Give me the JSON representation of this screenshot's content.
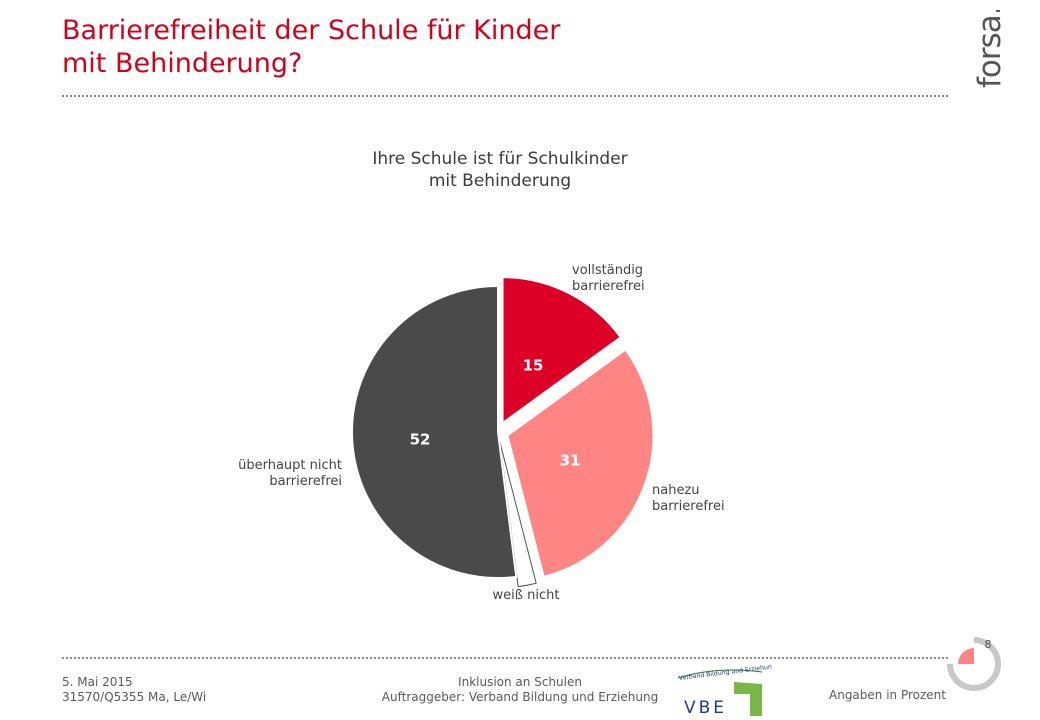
{
  "title": {
    "line1": "Barrierefreiheit der Schule für Kinder",
    "line2": "mit Behinderung?"
  },
  "logo_text": "forsa.",
  "colors": {
    "accent": "#d0021b",
    "slice_vollstaendig": "#dc0026",
    "slice_nahezu": "#ff8585",
    "slice_weiss_nicht": "#ffffff",
    "slice_ueberhaupt": "#4a4a4a"
  },
  "chart_data": {
    "type": "pie",
    "title": "Ihre Schule ist für Schulkinder mit Behinderung",
    "title_lines": [
      "Ihre Schule ist für Schulkinder",
      "mit Behinderung"
    ],
    "unit": "Prozent",
    "start": "12 o'clock, clockwise",
    "slices": [
      {
        "label_lines": [
          "vollständig",
          "barrierefrei"
        ],
        "value": 15,
        "value_label": "15",
        "color": "#dc0026",
        "exploded": true
      },
      {
        "label_lines": [
          "nahezu",
          "barrierefrei"
        ],
        "value": 31,
        "value_label": "31",
        "color": "#ff8585",
        "exploded": true
      },
      {
        "label_lines": [
          "weiß nicht"
        ],
        "value": 2,
        "value_label": "",
        "color": "#ffffff",
        "exploded": true
      },
      {
        "label_lines": [
          "überhaupt nicht",
          "barrierefrei"
        ],
        "value": 52,
        "value_label": "52",
        "color": "#4a4a4a",
        "exploded": false
      }
    ]
  },
  "footer": {
    "date": "5. Mai 2015",
    "ref": "31570/Q5355 Ma, Le/Wi",
    "topic": "Inklusion an Schulen",
    "client": "Auftraggeber: Verband Bildung und Erziehung",
    "unit_note": "Angaben in Prozent",
    "page_number": "8"
  },
  "vbe_logo": {
    "letters": "VBE",
    "tagline": "Verband Bildung und Erziehung"
  }
}
